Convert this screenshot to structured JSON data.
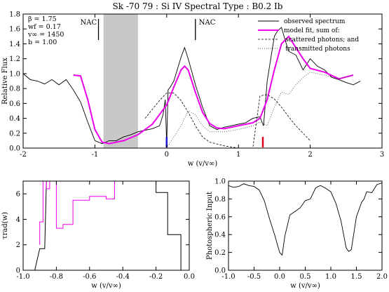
{
  "figure": {
    "title": "Sk -70 79 : Si IV      Spectral Type : B0.2 Ib",
    "params": [
      "β   =  1.75",
      "wf  =  0.17",
      "v∞  =  1450",
      "b   =  1.00"
    ],
    "nac_labels": [
      "NAC",
      "NAC"
    ],
    "colors": {
      "observed": "#000000",
      "model": "#ee00ee",
      "blue_mark": "#1a1adc",
      "red_mark": "#e0001a",
      "shade": "#c8c8c8"
    }
  },
  "chart_data": [
    {
      "type": "line",
      "title": "Sk -70 79 : Si IV      Spectral Type : B0.2 Ib",
      "xlabel": "w (v/v∞)",
      "ylabel": "Relative Flux",
      "xlim": [
        -2,
        3
      ],
      "ylim": [
        0,
        1.8
      ],
      "xticks": [
        -2,
        -1,
        0,
        1,
        2,
        3
      ],
      "yticks": [
        0.0,
        0.2,
        0.4,
        0.6,
        0.8,
        1.0,
        1.2,
        1.4,
        1.6,
        1.8
      ],
      "shaded_region": [
        -0.88,
        -0.4
      ],
      "nac_positions": [
        -0.95,
        0.4
      ],
      "markers": [
        {
          "x": 0.0,
          "color": "blue"
        },
        {
          "x": 1.34,
          "color": "red"
        }
      ],
      "legend": [
        "observed spectrum",
        "model fit, sum of:",
        "scattered photons; and",
        "transmitted photons"
      ],
      "legend_position": "top-right",
      "series": [
        {
          "name": "observed spectrum",
          "style": "solid-thin",
          "x": [
            -2.0,
            -1.9,
            -1.8,
            -1.7,
            -1.6,
            -1.5,
            -1.4,
            -1.3,
            -1.2,
            -1.1,
            -1.0,
            -0.95,
            -0.9,
            -0.85,
            -0.8,
            -0.7,
            -0.6,
            -0.5,
            -0.4,
            -0.3,
            -0.2,
            -0.1,
            -0.05,
            -0.02,
            0.0,
            0.02,
            0.05,
            0.1,
            0.2,
            0.25,
            0.3,
            0.4,
            0.5,
            0.6,
            0.7,
            0.8,
            0.9,
            1.0,
            1.1,
            1.2,
            1.3,
            1.35,
            1.4,
            1.5,
            1.55,
            1.6,
            1.65,
            1.7,
            1.8,
            1.9,
            2.0,
            2.1,
            2.2,
            2.3,
            2.4,
            2.5,
            2.6,
            2.7
          ],
          "y": [
            1.0,
            0.92,
            0.9,
            0.86,
            0.92,
            0.85,
            0.92,
            0.78,
            0.62,
            0.35,
            0.1,
            0.08,
            0.06,
            0.08,
            0.1,
            0.1,
            0.15,
            0.18,
            0.22,
            0.24,
            0.26,
            0.3,
            0.45,
            0.65,
            0.05,
            0.78,
            0.82,
            0.9,
            1.22,
            1.35,
            1.2,
            0.85,
            0.55,
            0.3,
            0.25,
            0.28,
            0.3,
            0.32,
            0.34,
            0.4,
            0.42,
            0.3,
            0.9,
            1.5,
            1.58,
            1.62,
            1.45,
            1.3,
            1.25,
            1.05,
            1.2,
            1.1,
            1.05,
            0.95,
            0.92,
            0.88,
            0.85,
            0.9
          ]
        },
        {
          "name": "model fit",
          "style": "solid-thick",
          "x": [
            -1.3,
            -1.2,
            -1.1,
            -1.0,
            -0.9,
            -0.8,
            -0.6,
            -0.4,
            -0.2,
            0.0,
            0.1,
            0.2,
            0.25,
            0.3,
            0.4,
            0.5,
            0.6,
            0.7,
            0.8,
            1.0,
            1.2,
            1.3,
            1.4,
            1.5,
            1.6,
            1.7,
            1.8,
            1.9,
            2.0,
            2.2,
            2.4,
            2.6
          ],
          "y": [
            0.98,
            0.97,
            0.65,
            0.25,
            0.08,
            0.06,
            0.1,
            0.18,
            0.32,
            0.58,
            0.82,
            1.05,
            1.1,
            1.05,
            0.75,
            0.48,
            0.33,
            0.27,
            0.26,
            0.3,
            0.34,
            0.4,
            0.65,
            1.05,
            1.4,
            1.5,
            1.35,
            1.2,
            1.07,
            1.02,
            0.93,
            0.98
          ]
        },
        {
          "name": "scattered photons",
          "style": "dashed",
          "x": [
            -0.3,
            -0.2,
            -0.1,
            0.0,
            0.1,
            0.2,
            0.3,
            0.4,
            0.5,
            0.6,
            0.8,
            1.0,
            1.2,
            1.3,
            1.4,
            1.5,
            1.6,
            1.7,
            1.8,
            1.9,
            2.0
          ],
          "y": [
            0.4,
            0.52,
            0.64,
            0.74,
            0.74,
            0.64,
            0.48,
            0.3,
            0.15,
            0.08,
            0.03,
            0.0,
            0.0,
            0.7,
            0.72,
            0.66,
            0.55,
            0.42,
            0.3,
            0.2,
            0.1
          ]
        },
        {
          "name": "transmitted photons",
          "style": "dotted",
          "x": [
            0.0,
            0.2,
            0.3,
            0.4,
            0.5,
            0.6,
            0.8,
            1.0,
            1.2,
            1.3,
            1.4,
            1.5,
            1.6,
            1.7,
            1.8,
            1.9,
            2.0,
            2.2,
            2.4,
            2.6
          ],
          "y": [
            0.0,
            0.3,
            0.5,
            0.45,
            0.3,
            0.22,
            0.22,
            0.25,
            0.3,
            0.35,
            0.3,
            0.55,
            0.75,
            0.72,
            0.85,
            0.95,
            1.02,
            0.98,
            0.93,
            0.98
          ]
        }
      ]
    },
    {
      "type": "line",
      "xlabel": "w (v/v∞)",
      "ylabel": "τrad(w)",
      "xlim": [
        -1.0,
        0.0
      ],
      "ylim": [
        0,
        7
      ],
      "xticks": [
        -1.0,
        -0.8,
        -0.6,
        -0.4,
        -0.2,
        0.0
      ],
      "yticks": [
        0,
        2,
        4,
        6
      ],
      "series": [
        {
          "name": "black",
          "style": "step",
          "x": [
            -0.96,
            -0.93,
            -0.9,
            -0.87,
            -0.86,
            -0.8,
            -0.8,
            -0.2,
            -0.2,
            -0.13,
            -0.13,
            -0.05,
            -0.05
          ],
          "y": [
            0.0,
            0.0,
            1.7,
            1.7,
            7.0,
            7.0,
            7.0,
            7.0,
            6.1,
            6.1,
            2.8,
            2.8,
            0.0
          ]
        },
        {
          "name": "magenta",
          "style": "step",
          "x": [
            -0.9,
            -0.9,
            -0.88,
            -0.88,
            -0.86,
            -0.86,
            -0.84,
            -0.84,
            -0.8,
            -0.8,
            -0.76,
            -0.76,
            -0.7,
            -0.7,
            -0.6,
            -0.6,
            -0.5,
            -0.5,
            -0.45,
            -0.45
          ],
          "y": [
            2.0,
            3.8,
            3.8,
            7.0,
            7.0,
            6.4,
            6.4,
            7.0,
            7.0,
            3.3,
            3.3,
            3.6,
            3.6,
            5.5,
            5.5,
            5.8,
            5.8,
            5.6,
            5.6,
            7.0
          ]
        }
      ]
    },
    {
      "type": "line",
      "xlabel": "w (v/v∞)",
      "ylabel": "Photospheric Input",
      "xlim": [
        -1.0,
        2.0
      ],
      "ylim": [
        0,
        1.0
      ],
      "xticks": [
        -1.0,
        -0.5,
        0.0,
        0.5,
        1.0,
        1.5,
        2.0
      ],
      "yticks": [
        0.0,
        0.2,
        0.4,
        0.6,
        0.8,
        1.0
      ],
      "series": [
        {
          "name": "photospheric",
          "style": "solid-thin",
          "x": [
            -1.0,
            -0.9,
            -0.8,
            -0.7,
            -0.6,
            -0.5,
            -0.4,
            -0.3,
            -0.2,
            -0.1,
            0.0,
            0.05,
            0.1,
            0.2,
            0.3,
            0.4,
            0.5,
            0.6,
            0.7,
            0.75,
            0.8,
            0.9,
            1.0,
            1.1,
            1.2,
            1.3,
            1.35,
            1.4,
            1.5,
            1.6,
            1.65,
            1.7,
            1.8,
            1.9,
            2.0
          ],
          "y": [
            0.95,
            0.93,
            0.94,
            0.97,
            0.95,
            0.94,
            0.9,
            0.78,
            0.58,
            0.4,
            0.2,
            0.17,
            0.38,
            0.62,
            0.66,
            0.7,
            0.78,
            0.8,
            0.92,
            0.94,
            0.95,
            0.92,
            0.88,
            0.75,
            0.55,
            0.25,
            0.21,
            0.23,
            0.6,
            0.76,
            0.8,
            0.88,
            0.87,
            0.96,
            0.98
          ]
        }
      ]
    }
  ]
}
